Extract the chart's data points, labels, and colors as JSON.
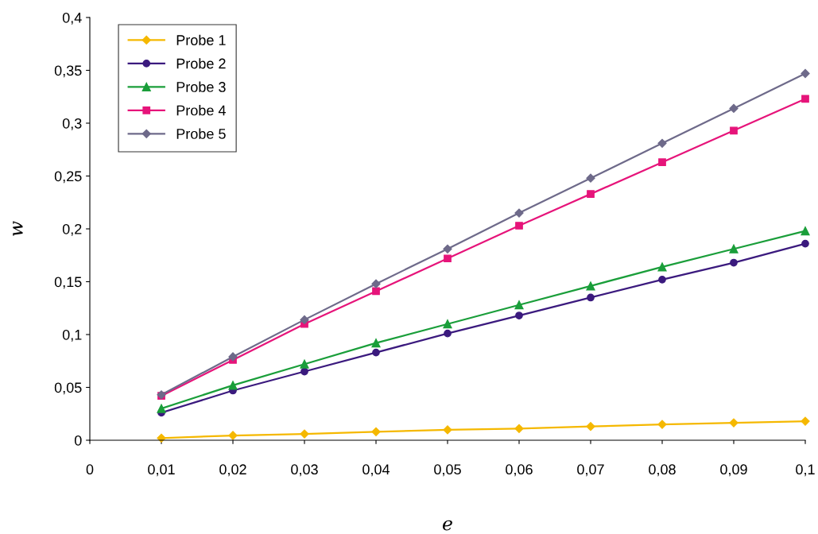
{
  "chart_data": {
    "type": "line",
    "xlabel": "e",
    "ylabel": "w",
    "x": [
      0.01,
      0.02,
      0.03,
      0.04,
      0.05,
      0.06,
      0.07,
      0.08,
      0.09,
      0.1
    ],
    "series": [
      {
        "name": "Probe 1",
        "color": "#f5b800",
        "marker": "diamond",
        "values": [
          0.002,
          0.0045,
          0.006,
          0.008,
          0.0098,
          0.011,
          0.013,
          0.015,
          0.0165,
          0.018
        ]
      },
      {
        "name": "Probe 2",
        "color": "#3b1a7e",
        "marker": "circle",
        "values": [
          0.026,
          0.047,
          0.065,
          0.083,
          0.101,
          0.118,
          0.135,
          0.152,
          0.168,
          0.186
        ]
      },
      {
        "name": "Probe 3",
        "color": "#1a9e3a",
        "marker": "triangle",
        "values": [
          0.03,
          0.052,
          0.072,
          0.092,
          0.11,
          0.128,
          0.146,
          0.164,
          0.181,
          0.198
        ]
      },
      {
        "name": "Probe 4",
        "color": "#e6147a",
        "marker": "square",
        "values": [
          0.042,
          0.076,
          0.11,
          0.141,
          0.172,
          0.203,
          0.233,
          0.263,
          0.293,
          0.323
        ]
      },
      {
        "name": "Probe 5",
        "color": "#6e6a8a",
        "marker": "diamond",
        "values": [
          0.043,
          0.079,
          0.114,
          0.148,
          0.181,
          0.215,
          0.248,
          0.281,
          0.314,
          0.347
        ]
      }
    ],
    "xlim": [
      0,
      0.1
    ],
    "xticks": [
      0,
      {
        "value": 0.01,
        "label": "0,01"
      },
      {
        "value": 0.02,
        "label": "0,02"
      },
      {
        "value": 0.03,
        "label": "0,03"
      },
      {
        "value": 0.04,
        "label": "0,04"
      },
      {
        "value": 0.05,
        "label": "0,05"
      },
      {
        "value": 0.06,
        "label": "0,06"
      },
      {
        "value": 0.07,
        "label": "0,07"
      },
      {
        "value": 0.08,
        "label": "0,08"
      },
      {
        "value": 0.09,
        "label": "0,09"
      },
      {
        "value": 0.1,
        "label": "0,1"
      }
    ],
    "ylim": [
      0,
      0.4
    ],
    "yticks": [
      0,
      {
        "value": 0.05,
        "label": "0,05"
      },
      {
        "value": 0.1,
        "label": "0,1"
      },
      {
        "value": 0.15,
        "label": "0,15"
      },
      {
        "value": 0.2,
        "label": "0,2"
      },
      {
        "value": 0.25,
        "label": "0,25"
      },
      {
        "value": 0.3,
        "label": "0,3"
      },
      {
        "value": 0.35,
        "label": "0,35"
      },
      {
        "value": 0.4,
        "label": "0,4"
      }
    ],
    "legend": "top left",
    "grid": false,
    "line_style": "solid"
  }
}
